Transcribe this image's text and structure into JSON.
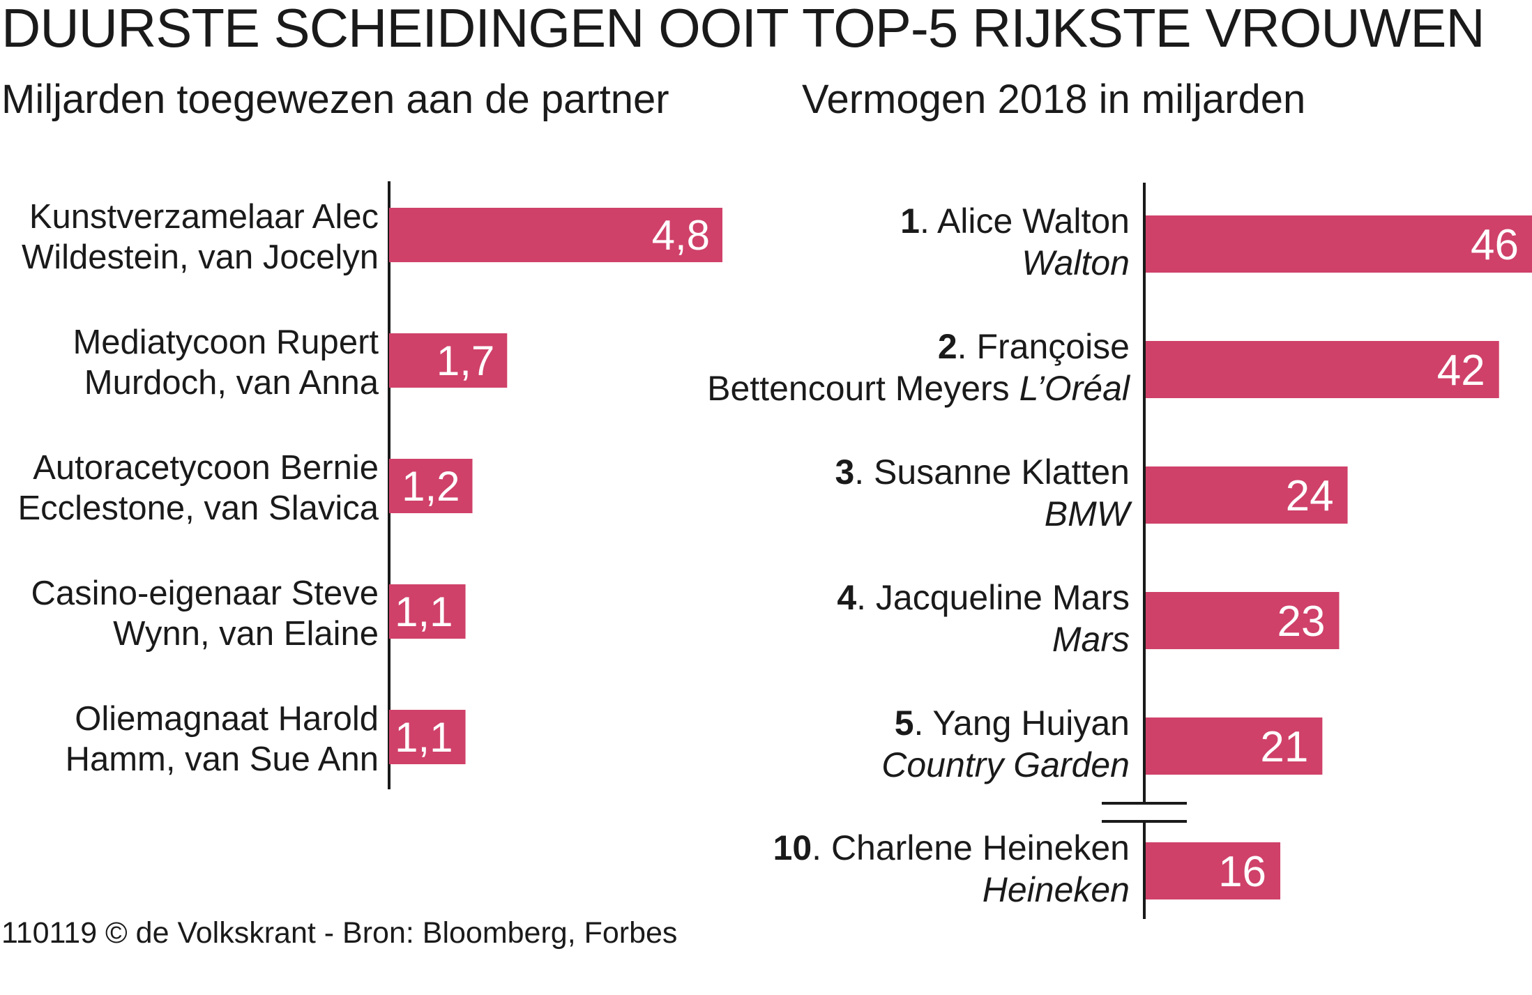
{
  "colors": {
    "bar": "#cf4169",
    "bar_text": "#ffffff",
    "text": "#1a1a1a",
    "axis": "#1a1a1a"
  },
  "chart_data": [
    {
      "type": "bar",
      "orientation": "horizontal",
      "title": "DUURSTE SCHEIDINGEN OOIT",
      "subtitle": "Miljarden toegewezen aan de partner",
      "categories": [
        [
          "Kunstverzamelaar Alec",
          "Wildestein, van Jocelyn"
        ],
        [
          "Mediatycoon Rupert",
          "Murdoch, van Anna"
        ],
        [
          "Autoracetycoon Bernie",
          "Ecclestone, van Slavica"
        ],
        [
          "Casino-eigenaar Steve",
          "Wynn, van Elaine"
        ],
        [
          "Oliemagnaat Harold",
          "Hamm, van Sue Ann"
        ]
      ],
      "values": [
        4.8,
        1.7,
        1.2,
        1.1,
        1.1
      ],
      "value_labels": [
        "4,8",
        "1,7",
        "1,2",
        "1,1",
        "1,1"
      ]
    },
    {
      "type": "bar",
      "orientation": "horizontal",
      "title": "TOP-5 RIJKSTE VROUWEN",
      "subtitle": "Vermogen 2018 in miljarden",
      "entries": [
        {
          "rank": "1",
          "lines": [
            ". Alice Walton",
            "Walton"
          ]
        },
        {
          "rank": "2",
          "lines": [
            ". Françoise",
            "Bettencourt Meyers",
            "L’Oréal"
          ]
        },
        {
          "rank": "3",
          "lines": [
            ". Susanne Klatten",
            "BMW"
          ]
        },
        {
          "rank": "4",
          "lines": [
            ". Jacqueline Mars",
            "Mars"
          ]
        },
        {
          "rank": "5",
          "lines": [
            ". Yang Huiyan",
            "Country Garden"
          ]
        },
        {
          "rank": "10",
          "lines": [
            ". Charlene Heineken",
            "Heineken"
          ]
        }
      ],
      "values": [
        46,
        42,
        24,
        23,
        21,
        16
      ],
      "value_labels": [
        "46",
        "42",
        "24",
        "23",
        "21",
        "16"
      ],
      "axis_break_after_index": 4
    }
  ],
  "source": "110119 © de Volkskrant - Bron: Bloomberg, Forbes"
}
